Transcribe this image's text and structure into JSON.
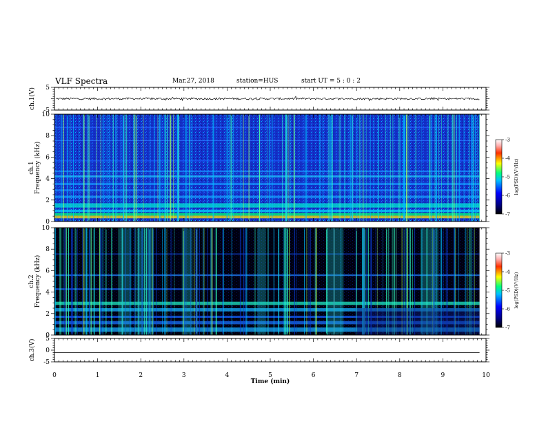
{
  "header": {
    "title": "VLF Spectra",
    "date": "Mar.27, 2018",
    "station": "station=HUS",
    "start": "start  UT =   5 : 0  : 2"
  },
  "chart_data": [
    {
      "type": "line",
      "ylabel": "ch.1(V)",
      "ylim": [
        -5,
        5
      ],
      "yticks": [
        "5",
        "-5"
      ],
      "note": "noisy waveform centered near 0"
    },
    {
      "type": "heatmap",
      "ylabel": "ch.1",
      "ylabel2": "Frequency (kHz)",
      "ylim": [
        0,
        10
      ],
      "yticks": [
        "0",
        "2",
        "4",
        "6",
        "8",
        "10"
      ],
      "colorbar": {
        "label": "log(PSD)(V²/Hz)",
        "ticks": [
          "-3",
          "-4",
          "-5",
          "-6",
          "-7"
        ],
        "range": [
          -7,
          -3
        ]
      }
    },
    {
      "type": "heatmap",
      "ylabel": "ch.2",
      "ylabel2": "Frequency (kHz)",
      "ylim": [
        0,
        10
      ],
      "yticks": [
        "0",
        "2",
        "4",
        "6",
        "8",
        "10"
      ],
      "colorbar": {
        "label": "log(PSD)(V²/Hz)",
        "ticks": [
          "-3",
          "-4",
          "-5",
          "-6",
          "-7"
        ],
        "range": [
          -7,
          -3
        ]
      }
    },
    {
      "type": "line",
      "ylabel": "ch.3(V)",
      "ylim": [
        -5,
        5
      ],
      "yticks": [
        "5",
        "0",
        "-5"
      ],
      "note": "flat line near -1"
    }
  ],
  "xaxis": {
    "label": "Time (min)",
    "xlim": [
      0,
      10
    ],
    "ticks": [
      "0",
      "1",
      "2",
      "3",
      "4",
      "5",
      "6",
      "7",
      "8",
      "9",
      "10"
    ],
    "data_end": 9.85
  }
}
